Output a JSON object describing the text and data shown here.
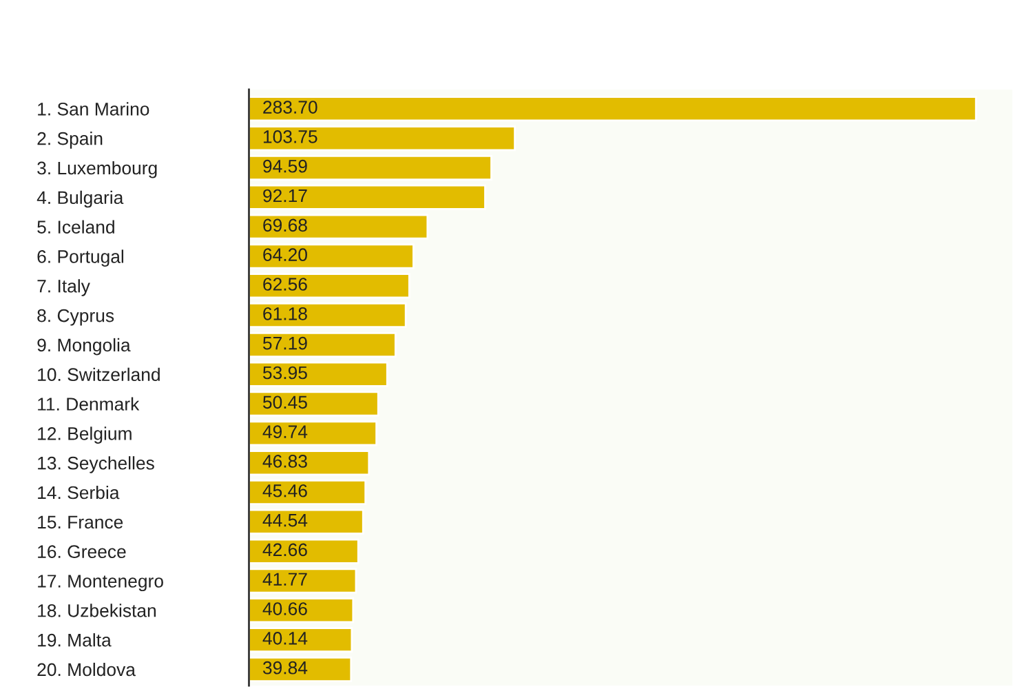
{
  "chart_data": {
    "type": "bar",
    "orientation": "horizontal",
    "categories": [
      "1. San Marino",
      "2. Spain",
      "3. Luxembourg",
      "4. Bulgaria",
      "5. Iceland",
      "6. Portugal",
      "7. Italy",
      "8. Cyprus",
      "9. Mongolia",
      "10. Switzerland",
      "11. Denmark",
      "12. Belgium",
      "13. Seychelles",
      "14. Serbia",
      "15. France",
      "16. Greece",
      "17. Montenegro",
      "18. Uzbekistan",
      "19. Malta",
      "20. Moldova"
    ],
    "values": [
      283.7,
      103.75,
      94.59,
      92.17,
      69.68,
      64.2,
      62.56,
      61.18,
      57.19,
      53.95,
      50.45,
      49.74,
      46.83,
      45.46,
      44.54,
      42.66,
      41.77,
      40.66,
      40.14,
      39.84
    ],
    "value_labels": [
      "283.70",
      "103.75",
      "94.59",
      "92.17",
      "69.68",
      "64.20",
      "62.56",
      "61.18",
      "57.19",
      "53.95",
      "50.45",
      "49.74",
      "46.83",
      "45.46",
      "44.54",
      "42.66",
      "41.77",
      "40.66",
      "40.14",
      "39.84"
    ],
    "color": "#e2bc00",
    "tick_labels": "y"
  }
}
